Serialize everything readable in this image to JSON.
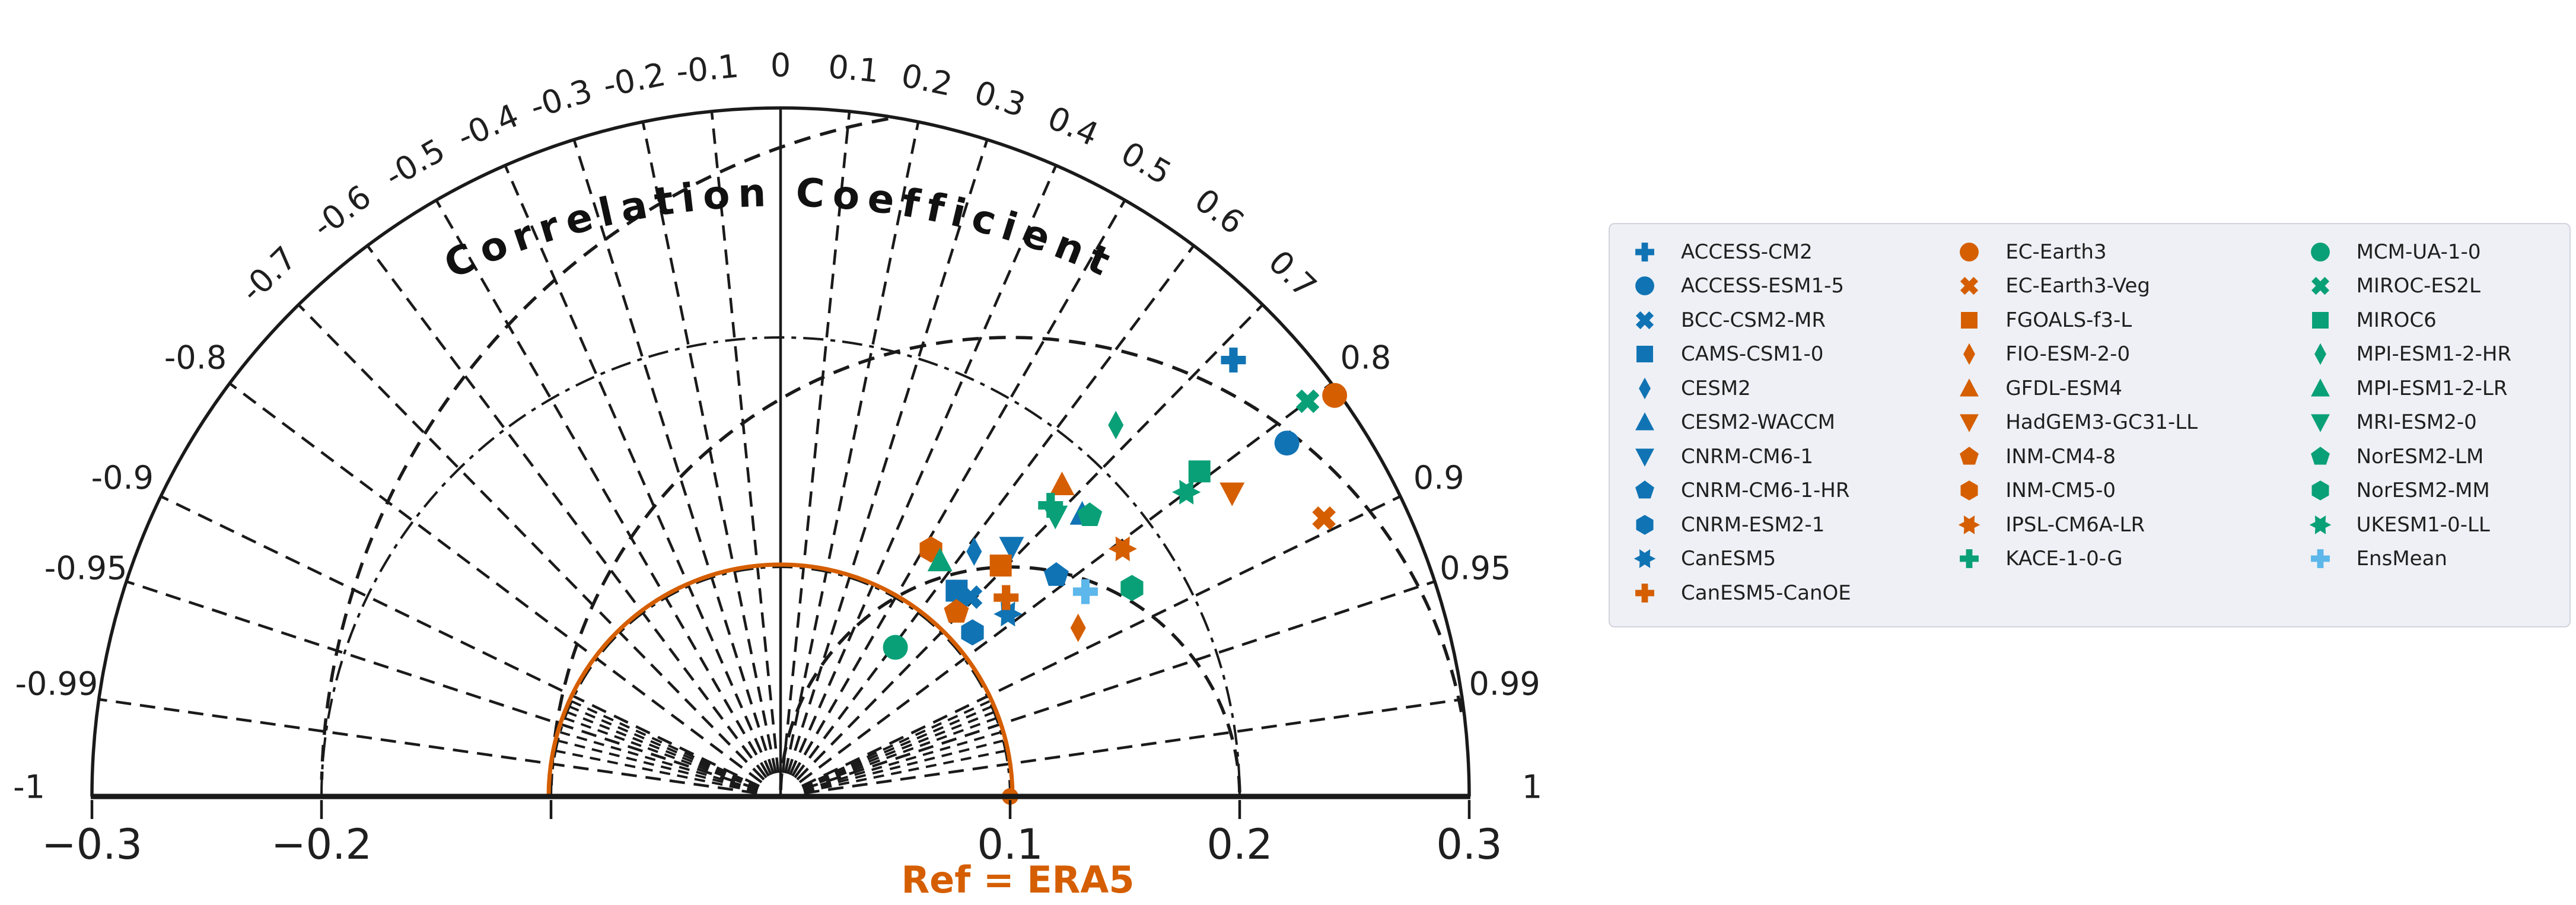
{
  "chart_data": {
    "type": "scatter",
    "variant": "taylor-diagram",
    "title": "Correlation Coefficient",
    "ref_label": "Ref = ERA5",
    "reference": {
      "name": "ERA5",
      "std": 0.1,
      "corr": 1.0
    },
    "palette": {
      "blue": "#1073b4",
      "orange": "#d55e00",
      "green": "#0aa077",
      "skyblue": "#5db7ea",
      "ref_arc": "#d55e00",
      "line": "#1a1a1a",
      "tick_text": "#1f1f1f"
    },
    "std_axis": {
      "max": 0.3,
      "arc_values_dashdot": [
        0.1,
        0.2
      ],
      "tick_values": [
        -0.3,
        -0.2,
        -0.1,
        0.1,
        0.2,
        0.3
      ],
      "tick_labels": [
        {
          "v": -0.3,
          "text": "−0.3"
        },
        {
          "v": -0.2,
          "text": "−0.2"
        },
        {
          "v": 0.1,
          "text": "0.1"
        },
        {
          "v": 0.2,
          "text": "0.2"
        },
        {
          "v": 0.3,
          "text": "0.3"
        }
      ]
    },
    "corr_axis": {
      "spokes_major": [
        -0.99,
        -0.95,
        -0.9,
        -0.8,
        -0.7,
        -0.6,
        -0.5,
        -0.4,
        -0.3,
        -0.2,
        -0.1,
        0.1,
        0.2,
        0.3,
        0.4,
        0.5,
        0.6,
        0.7,
        0.8,
        0.9,
        0.95,
        0.99
      ],
      "spokes_minor": [
        -0.98,
        -0.97,
        -0.96,
        -0.94,
        -0.93,
        -0.92,
        -0.91,
        0.91,
        0.92,
        0.93,
        0.94,
        0.96,
        0.97,
        0.98
      ],
      "zero_spoke_solid": true,
      "labels": [
        {
          "v": -1,
          "text": "-1"
        },
        {
          "v": -0.99,
          "text": "-0.99"
        },
        {
          "v": -0.95,
          "text": "-0.95"
        },
        {
          "v": -0.9,
          "text": "-0.9"
        },
        {
          "v": -0.8,
          "text": "-0.8"
        },
        {
          "v": -0.7,
          "text": "-0.7"
        },
        {
          "v": -0.6,
          "text": "-0.6"
        },
        {
          "v": -0.5,
          "text": "-0.5"
        },
        {
          "v": -0.4,
          "text": "-0.4"
        },
        {
          "v": -0.3,
          "text": "-0.3"
        },
        {
          "v": -0.2,
          "text": "-0.2"
        },
        {
          "v": -0.1,
          "text": "-0.1"
        },
        {
          "v": 0,
          "text": "0"
        },
        {
          "v": 0.1,
          "text": "0.1"
        },
        {
          "v": 0.2,
          "text": "0.2"
        },
        {
          "v": 0.3,
          "text": "0.3"
        },
        {
          "v": 0.4,
          "text": "0.4"
        },
        {
          "v": 0.5,
          "text": "0.5"
        },
        {
          "v": 0.6,
          "text": "0.6"
        },
        {
          "v": 0.7,
          "text": "0.7"
        },
        {
          "v": 0.8,
          "text": "0.8"
        },
        {
          "v": 0.9,
          "text": "0.9"
        },
        {
          "v": 0.95,
          "text": "0.95"
        },
        {
          "v": 0.99,
          "text": "0.99"
        },
        {
          "v": 1,
          "text": "1"
        }
      ]
    },
    "rms_contours": [
      0.1,
      0.2,
      0.3
    ],
    "points": [
      {
        "model": "ACCESS-CM2",
        "marker": "plus",
        "color": "blue",
        "corr": 0.72,
        "std": 0.274
      },
      {
        "model": "ACCESS-ESM1-5",
        "marker": "circle",
        "color": "blue",
        "corr": 0.82,
        "std": 0.269
      },
      {
        "model": "BCC-CSM2-MR",
        "marker": "x",
        "color": "blue",
        "corr": 0.69,
        "std": 0.12
      },
      {
        "model": "CAMS-CSM1-0",
        "marker": "square",
        "color": "blue",
        "corr": 0.65,
        "std": 0.118
      },
      {
        "model": "CESM2",
        "marker": "diamond",
        "color": "blue",
        "corr": 0.62,
        "std": 0.136
      },
      {
        "model": "CESM2-WACCM",
        "marker": "triangle-up",
        "color": "blue",
        "corr": 0.73,
        "std": 0.18
      },
      {
        "model": "CNRM-CM6-1",
        "marker": "triangle-down",
        "color": "blue",
        "corr": 0.68,
        "std": 0.148
      },
      {
        "model": "CNRM-CM6-1-HR",
        "marker": "pentagon",
        "color": "blue",
        "corr": 0.78,
        "std": 0.154
      },
      {
        "model": "CNRM-ESM2-1",
        "marker": "hexagon",
        "color": "blue",
        "corr": 0.76,
        "std": 0.11
      },
      {
        "model": "CanESM5",
        "marker": "star",
        "color": "blue",
        "corr": 0.78,
        "std": 0.127
      },
      {
        "model": "CanESM5-CanOE",
        "marker": "plus",
        "color": "orange",
        "corr": 0.75,
        "std": 0.131
      },
      {
        "model": "EC-Earth3",
        "marker": "circle",
        "color": "orange",
        "corr": 0.81,
        "std": 0.298
      },
      {
        "model": "EC-Earth3-Veg",
        "marker": "x",
        "color": "orange",
        "corr": 0.89,
        "std": 0.266
      },
      {
        "model": "FGOALS-f3-L",
        "marker": "square",
        "color": "orange",
        "corr": 0.69,
        "std": 0.139
      },
      {
        "model": "FIO-ESM-2-0",
        "marker": "diamond",
        "color": "orange",
        "corr": 0.87,
        "std": 0.149
      },
      {
        "model": "GFDL-ESM4",
        "marker": "triangle-up",
        "color": "orange",
        "corr": 0.67,
        "std": 0.183
      },
      {
        "model": "HadGEM3-GC31-LL",
        "marker": "triangle-down",
        "color": "orange",
        "corr": 0.83,
        "std": 0.237
      },
      {
        "model": "INM-CM4-8",
        "marker": "pentagon",
        "color": "orange",
        "corr": 0.69,
        "std": 0.111
      },
      {
        "model": "INM-CM5-0",
        "marker": "hexagon",
        "color": "orange",
        "corr": 0.52,
        "std": 0.126
      },
      {
        "model": "IPSL-CM6A-LR",
        "marker": "star",
        "color": "orange",
        "corr": 0.81,
        "std": 0.184
      },
      {
        "model": "KACE-1-0-G",
        "marker": "plus",
        "color": "green",
        "corr": 0.68,
        "std": 0.173
      },
      {
        "model": "MCM-UA-1-0",
        "marker": "circle",
        "color": "green",
        "corr": 0.61,
        "std": 0.082
      },
      {
        "model": "MIROC-ES2L",
        "marker": "x",
        "color": "green",
        "corr": 0.8,
        "std": 0.287
      },
      {
        "model": "MIROC6",
        "marker": "square",
        "color": "green",
        "corr": 0.79,
        "std": 0.231
      },
      {
        "model": "MPI-ESM1-2-HR",
        "marker": "diamond",
        "color": "green",
        "corr": 0.67,
        "std": 0.218
      },
      {
        "model": "MPI-ESM1-2-LR",
        "marker": "triangle-up",
        "color": "green",
        "corr": 0.56,
        "std": 0.124
      },
      {
        "model": "MRI-ESM2-0",
        "marker": "triangle-down",
        "color": "green",
        "corr": 0.7,
        "std": 0.171
      },
      {
        "model": "NorESM2-LM",
        "marker": "pentagon",
        "color": "green",
        "corr": 0.74,
        "std": 0.182
      },
      {
        "model": "NorESM2-MM",
        "marker": "hexagon",
        "color": "green",
        "corr": 0.86,
        "std": 0.178
      },
      {
        "model": "UKESM1-0-LL",
        "marker": "star",
        "color": "green",
        "corr": 0.8,
        "std": 0.221
      },
      {
        "model": "EnsMean",
        "marker": "plus",
        "color": "skyblue",
        "corr": 0.83,
        "std": 0.16
      }
    ],
    "legend_columns": [
      11,
      10,
      10
    ],
    "legend_position": "right",
    "grid": true
  }
}
